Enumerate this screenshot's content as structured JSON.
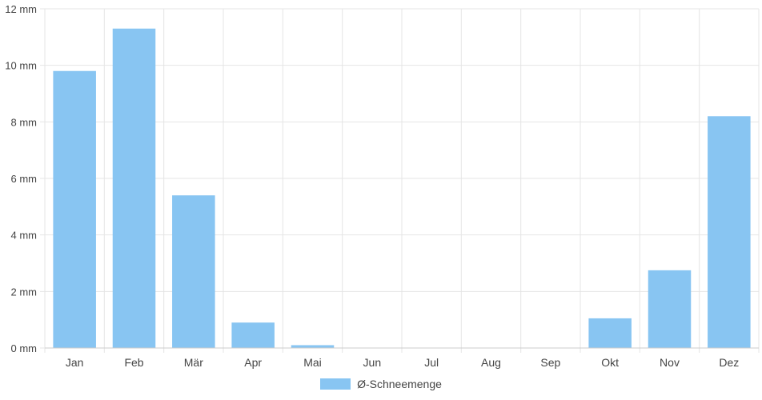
{
  "chart_data": {
    "type": "bar",
    "categories": [
      "Jan",
      "Feb",
      "Mär",
      "Apr",
      "Mai",
      "Jun",
      "Jul",
      "Aug",
      "Sep",
      "Okt",
      "Nov",
      "Dez"
    ],
    "series": [
      {
        "name": "Ø-Schneemenge",
        "values": [
          9.8,
          11.3,
          5.4,
          0.9,
          0.1,
          0,
          0,
          0,
          0,
          1.05,
          2.75,
          8.2
        ],
        "color": "#88c5f2"
      }
    ],
    "ylim": [
      0,
      12
    ],
    "yticks": [
      0,
      2,
      4,
      6,
      8,
      10,
      12
    ],
    "ytick_labels": [
      "0 mm",
      "2 mm",
      "4 mm",
      "6 mm",
      "8 mm",
      "10 mm",
      "12 mm"
    ],
    "grid": true,
    "legend_position": "bottom-center",
    "gridline_color": "#e5e5e5"
  }
}
